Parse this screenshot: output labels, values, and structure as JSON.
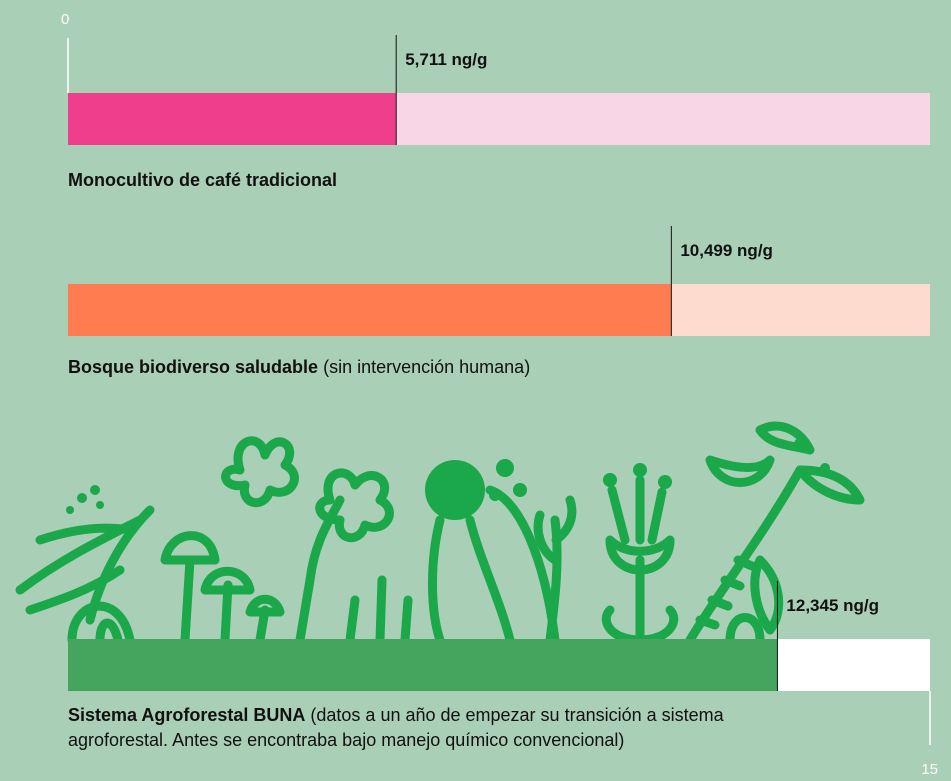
{
  "chart_data": {
    "type": "bar",
    "orientation": "horizontal",
    "categories": [
      "Monocultivo de café tradicional",
      "Bosque biodiverso saludable",
      "Sistema Agroforestal BUNA"
    ],
    "category_notes": [
      null,
      "(sin intervención humana)",
      "(datos a un año de empezar su transición a sistema agroforestal. Antes se encontraba bajo manejo químico convencional)"
    ],
    "values": [
      5.711,
      10.499,
      12.345
    ],
    "value_labels": [
      "5,711 ng/g",
      "10,499 ng/g",
      "12,345 ng/g"
    ],
    "colors": [
      "#ef3f8c",
      "#ff7c51",
      "#45a55f"
    ],
    "track_colors": [
      "#f9d6e5",
      "#fddccf",
      "#ffffff"
    ],
    "xlim": [
      0,
      15
    ],
    "xticks": [
      0,
      15
    ]
  }
}
